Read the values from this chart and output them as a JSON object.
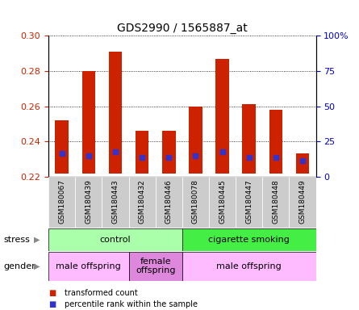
{
  "title": "GDS2990 / 1565887_at",
  "samples": [
    "GSM180067",
    "GSM180439",
    "GSM180443",
    "GSM180432",
    "GSM180446",
    "GSM180078",
    "GSM180445",
    "GSM180447",
    "GSM180448",
    "GSM180449"
  ],
  "bar_tops": [
    0.252,
    0.28,
    0.291,
    0.246,
    0.246,
    0.26,
    0.287,
    0.261,
    0.258,
    0.233
  ],
  "bar_base": 0.222,
  "percentile_vals": [
    0.233,
    0.232,
    0.234,
    0.231,
    0.231,
    0.232,
    0.234,
    0.231,
    0.231,
    0.229
  ],
  "ylim_left": [
    0.22,
    0.3
  ],
  "ylim_right": [
    0,
    100
  ],
  "yticks_left": [
    0.22,
    0.24,
    0.26,
    0.28,
    0.3
  ],
  "yticks_right": [
    0,
    25,
    50,
    75,
    100
  ],
  "ytick_labels_right": [
    "0",
    "25",
    "50",
    "75",
    "100%"
  ],
  "bar_color": "#cc2200",
  "blue_color": "#3333cc",
  "plot_bg": "#ffffff",
  "grid_color": "#000000",
  "xtick_bg": "#cccccc",
  "stress_groups": [
    {
      "label": "control",
      "start": 0,
      "end": 4,
      "color": "#aaffaa"
    },
    {
      "label": "cigarette smoking",
      "start": 5,
      "end": 9,
      "color": "#44ee44"
    }
  ],
  "gender_groups": [
    {
      "label": "male offspring",
      "start": 0,
      "end": 2,
      "color": "#ffbbff"
    },
    {
      "label": "female\noffspring",
      "start": 3,
      "end": 4,
      "color": "#dd88dd"
    },
    {
      "label": "male offspring",
      "start": 5,
      "end": 9,
      "color": "#ffbbff"
    }
  ],
  "stress_label": "stress",
  "gender_label": "gender",
  "legend_items": [
    {
      "color": "#cc2200",
      "label": "transformed count"
    },
    {
      "color": "#3333cc",
      "label": "percentile rank within the sample"
    }
  ],
  "tick_label_color_left": "#cc2200",
  "tick_label_color_right": "#0000cc"
}
